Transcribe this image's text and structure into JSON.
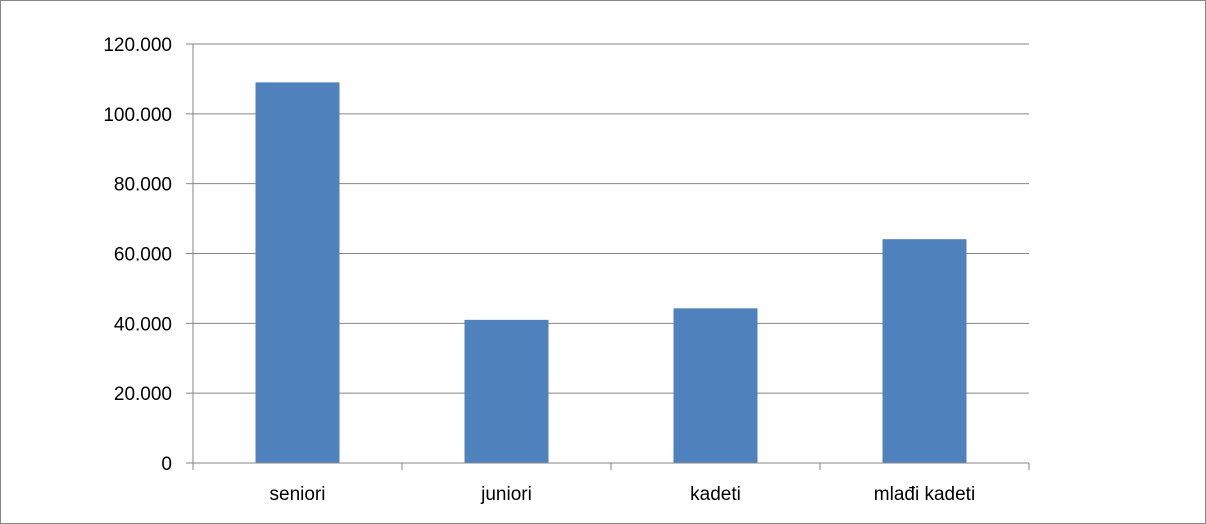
{
  "chart_data": {
    "type": "bar",
    "title": "",
    "xlabel": "",
    "ylabel": "",
    "categories": [
      "seniori",
      "juniori",
      "kadeti",
      "mlađi kadeti"
    ],
    "series": [
      {
        "values": [
          109000,
          41000,
          44300,
          64100
        ]
      }
    ],
    "ylim": [
      0,
      120000
    ],
    "yticks": [
      0,
      20000,
      40000,
      60000,
      80000,
      100000,
      120000
    ],
    "ytick_labels": [
      "0",
      "20.000",
      "40.000",
      "60.000",
      "80.000",
      "100.000",
      "120.000"
    ],
    "grid": true,
    "legend": "none",
    "bar_color": "#4f81bd",
    "gridline_color": "#868686"
  }
}
